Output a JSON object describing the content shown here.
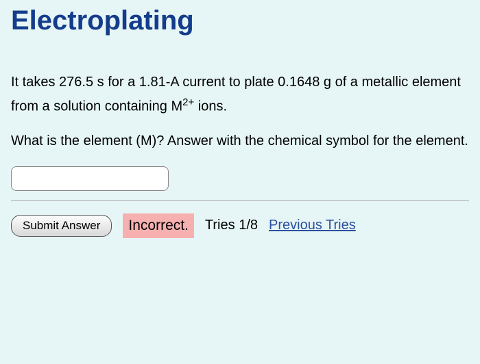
{
  "title": "Electroplating",
  "problem": {
    "time_s": "276.5",
    "current_A": "1.81",
    "mass_g": "0.1648",
    "ion_charge_label": "2+",
    "text_before": "It takes ",
    "unit_time": " s for a ",
    "unit_current": "-A current to plate ",
    "unit_mass": " g of a metallic element from a solution containing M",
    "after_ion": " ions."
  },
  "question": "What is the element (M)? Answer with the chemical symbol for the element.",
  "input": {
    "value": "",
    "placeholder": ""
  },
  "actions": {
    "submit_label": "Submit Answer"
  },
  "status": {
    "text": "Incorrect.",
    "bg_color": "#f7b0b0"
  },
  "tries": {
    "label_prefix": "Tries ",
    "current": 1,
    "max": 8,
    "prev_link": "Previous Tries"
  },
  "colors": {
    "background": "#e6f5f5",
    "title": "#143c8c",
    "link": "#2a4fa0"
  }
}
